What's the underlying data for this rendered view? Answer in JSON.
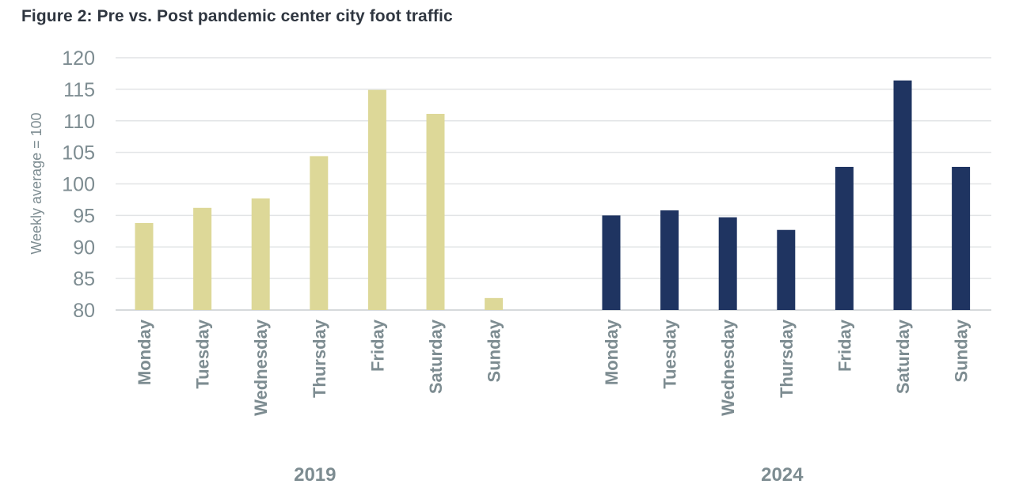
{
  "chart_data": {
    "type": "bar",
    "title": "Figure 2: Pre vs. Post pandemic center city foot traffic",
    "ylabel": "Weekly average = 100",
    "xlabel": "",
    "ylim": [
      80,
      120
    ],
    "yticks": [
      80,
      85,
      90,
      95,
      100,
      105,
      110,
      115,
      120
    ],
    "grid": true,
    "groups": [
      {
        "name": "2019",
        "color": "#ddd898",
        "categories": [
          "Monday",
          "Tuesday",
          "Wednesday",
          "Thursday",
          "Friday",
          "Saturday",
          "Sunday"
        ],
        "values": [
          93.8,
          96.2,
          97.7,
          104.4,
          114.9,
          111.1,
          81.9
        ]
      },
      {
        "name": "2024",
        "color": "#1f3461",
        "categories": [
          "Monday",
          "Tuesday",
          "Wednesday",
          "Thursday",
          "Friday",
          "Saturday",
          "Sunday"
        ],
        "values": [
          95.0,
          95.8,
          94.7,
          92.7,
          102.7,
          116.4,
          102.7
        ]
      }
    ]
  }
}
